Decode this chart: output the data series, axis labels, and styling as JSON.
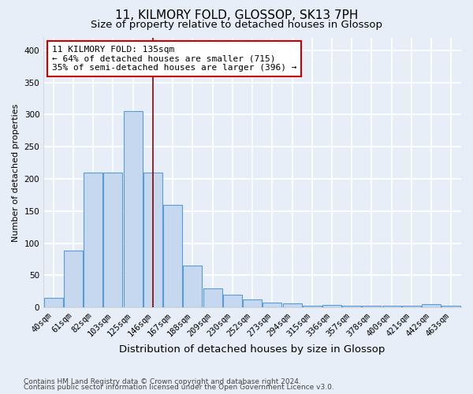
{
  "title": "11, KILMORY FOLD, GLOSSOP, SK13 7PH",
  "subtitle": "Size of property relative to detached houses in Glossop",
  "xlabel": "Distribution of detached houses by size in Glossop",
  "ylabel": "Number of detached properties",
  "categories": [
    "40sqm",
    "61sqm",
    "82sqm",
    "103sqm",
    "125sqm",
    "146sqm",
    "167sqm",
    "188sqm",
    "209sqm",
    "230sqm",
    "252sqm",
    "273sqm",
    "294sqm",
    "315sqm",
    "336sqm",
    "357sqm",
    "378sqm",
    "400sqm",
    "421sqm",
    "442sqm",
    "463sqm"
  ],
  "values": [
    15,
    88,
    210,
    210,
    305,
    210,
    160,
    65,
    30,
    20,
    12,
    8,
    6,
    3,
    4,
    3,
    3,
    3,
    3,
    5,
    3
  ],
  "bar_color": "#c5d8f0",
  "bar_edgecolor": "#5b9bd5",
  "bar_linewidth": 0.8,
  "vline_x": 5.0,
  "vline_color": "#8b0000",
  "vline_linewidth": 1.2,
  "annotation_text": "11 KILMORY FOLD: 135sqm\n← 64% of detached houses are smaller (715)\n35% of semi-detached houses are larger (396) →",
  "annotation_box_color": "#ffffff",
  "annotation_box_edgecolor": "#cc0000",
  "ylim": [
    0,
    420
  ],
  "yticks": [
    0,
    50,
    100,
    150,
    200,
    250,
    300,
    350,
    400
  ],
  "footnote1": "Contains HM Land Registry data © Crown copyright and database right 2024.",
  "footnote2": "Contains public sector information licensed under the Open Government Licence v3.0.",
  "background_color": "#e8eef7",
  "plot_background_color": "#e8eef7",
  "grid_color": "#ffffff",
  "title_fontsize": 11,
  "subtitle_fontsize": 9.5,
  "xlabel_fontsize": 9.5,
  "ylabel_fontsize": 8,
  "tick_fontsize": 7.5,
  "annotation_fontsize": 8,
  "footnote_fontsize": 6.5
}
